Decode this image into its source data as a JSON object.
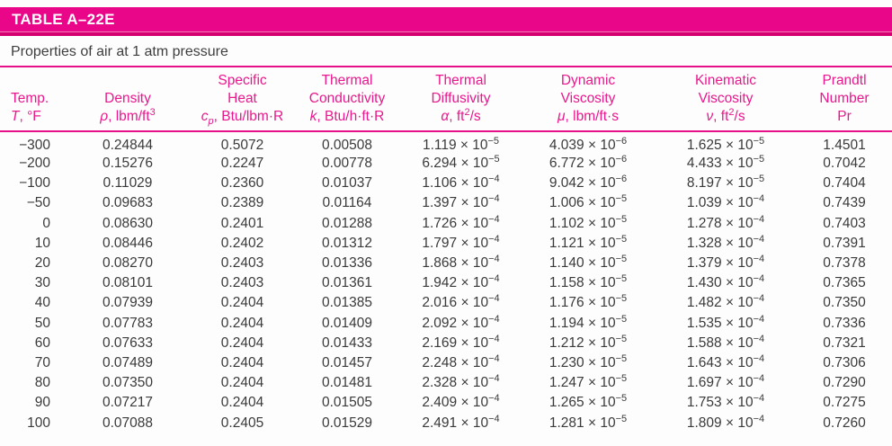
{
  "header": {
    "table_id": "TABLE A–22E",
    "subtitle": "Properties of air at 1 atm pressure"
  },
  "colors": {
    "magenta_bar": "#EA0689",
    "magenta_dark": "#D4006F",
    "rule": "#E5108A",
    "header_text": "#E9188C",
    "body_text": "#3A3A3A"
  },
  "table": {
    "columns": [
      {
        "name": "temperature",
        "lines": [
          "",
          "Temp.",
          "*T*, °F"
        ]
      },
      {
        "name": "density",
        "lines": [
          "",
          "Density",
          "*ρ*, lbm/ft^3^"
        ]
      },
      {
        "name": "specific-heat",
        "lines": [
          "Specific",
          "Heat",
          "*c~p~*, Btu/lbm·R"
        ]
      },
      {
        "name": "thermal-conductivity",
        "lines": [
          "Thermal",
          "Conductivity",
          "*k*, Btu/h·ft·R"
        ]
      },
      {
        "name": "thermal-diffusivity",
        "lines": [
          "Thermal",
          "Diffusivity",
          "*α*, ft^2^/s"
        ]
      },
      {
        "name": "dynamic-viscosity",
        "lines": [
          "Dynamic",
          "Viscosity",
          "*μ*, lbm/ft·s"
        ]
      },
      {
        "name": "kinematic-viscosity",
        "lines": [
          "Kinematic",
          "Viscosity",
          "*ν*, ft^2^/s"
        ]
      },
      {
        "name": "prandtl-number",
        "lines": [
          "Prandtl",
          "Number",
          "Pr"
        ]
      }
    ],
    "rows": [
      [
        "−300",
        "0.24844",
        "0.5072",
        "0.00508",
        "1.119 × 10^−5^",
        "4.039 × 10^−6^",
        "1.625 × 10^−5^",
        "1.4501"
      ],
      [
        "−200",
        "0.15276",
        "0.2247",
        "0.00778",
        "6.294 × 10^−5^",
        "6.772 × 10^−6^",
        "4.433 × 10^−5^",
        "0.7042"
      ],
      [
        "−100",
        "0.11029",
        "0.2360",
        "0.01037",
        "1.106 × 10^−4^",
        "9.042 × 10^−6^",
        "8.197 × 10^−5^",
        "0.7404"
      ],
      [
        "−50",
        "0.09683",
        "0.2389",
        "0.01164",
        "1.397 × 10^−4^",
        "1.006 × 10^−5^",
        "1.039 × 10^−4^",
        "0.7439"
      ],
      [
        "0",
        "0.08630",
        "0.2401",
        "0.01288",
        "1.726 × 10^−4^",
        "1.102 × 10^−5^",
        "1.278 × 10^−4^",
        "0.7403"
      ],
      [
        "10",
        "0.08446",
        "0.2402",
        "0.01312",
        "1.797 × 10^−4^",
        "1.121 × 10^−5^",
        "1.328 × 10^−4^",
        "0.7391"
      ],
      [
        "20",
        "0.08270",
        "0.2403",
        "0.01336",
        "1.868 × 10^−4^",
        "1.140 × 10^−5^",
        "1.379 × 10^−4^",
        "0.7378"
      ],
      [
        "30",
        "0.08101",
        "0.2403",
        "0.01361",
        "1.942 × 10^−4^",
        "1.158 × 10^−5^",
        "1.430 × 10^−4^",
        "0.7365"
      ],
      [
        "40",
        "0.07939",
        "0.2404",
        "0.01385",
        "2.016 × 10^−4^",
        "1.176 × 10^−5^",
        "1.482 × 10^−4^",
        "0.7350"
      ],
      [
        "50",
        "0.07783",
        "0.2404",
        "0.01409",
        "2.092 × 10^−4^",
        "1.194 × 10^−5^",
        "1.535 × 10^−4^",
        "0.7336"
      ],
      [
        "60",
        "0.07633",
        "0.2404",
        "0.01433",
        "2.169 × 10^−4^",
        "1.212 × 10^−5^",
        "1.588 × 10^−4^",
        "0.7321"
      ],
      [
        "70",
        "0.07489",
        "0.2404",
        "0.01457",
        "2.248 × 10^−4^",
        "1.230 × 10^−5^",
        "1.643 × 10^−4^",
        "0.7306"
      ],
      [
        "80",
        "0.07350",
        "0.2404",
        "0.01481",
        "2.328 × 10^−4^",
        "1.247 × 10^−5^",
        "1.697 × 10^−4^",
        "0.7290"
      ],
      [
        "90",
        "0.07217",
        "0.2404",
        "0.01505",
        "2.409 × 10^−4^",
        "1.265 × 10^−5^",
        "1.753 × 10^−4^",
        "0.7275"
      ],
      [
        "100",
        "0.07088",
        "0.2405",
        "0.01529",
        "2.491 × 10^−4^",
        "1.281 × 10^−5^",
        "1.809 × 10^−4^",
        "0.7260"
      ]
    ]
  }
}
